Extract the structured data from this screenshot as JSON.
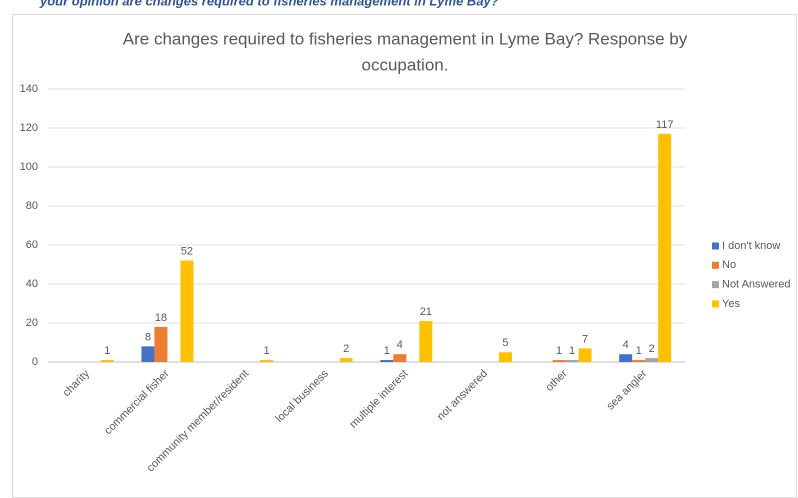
{
  "header": {
    "text": "your opinion are changes required to fisheries management in Lyme Bay?"
  },
  "chart_data": {
    "type": "bar",
    "title": [
      "Are changes required to fisheries management in Lyme Bay?  Response by",
      "occupation."
    ],
    "categories": [
      "charity",
      "commercial fisher",
      "community member/resident",
      "local business",
      "multiple interest",
      "not answered",
      "other",
      "sea angler"
    ],
    "series": [
      {
        "name": "I don't know",
        "color": "#4472c4",
        "values": [
          null,
          8,
          null,
          null,
          1,
          null,
          null,
          4
        ]
      },
      {
        "name": "No",
        "color": "#ed7d31",
        "values": [
          null,
          18,
          null,
          null,
          4,
          null,
          1,
          1
        ]
      },
      {
        "name": "Not Answered",
        "color": "#a5a5a5",
        "values": [
          null,
          null,
          null,
          null,
          null,
          null,
          1,
          2
        ]
      },
      {
        "name": "Yes",
        "color": "#ffc000",
        "values": [
          1,
          52,
          1,
          2,
          21,
          5,
          7,
          117
        ]
      }
    ],
    "ylim": [
      0,
      140
    ],
    "yticks": [
      0,
      20,
      40,
      60,
      80,
      100,
      120,
      140
    ],
    "grid": true,
    "legend": "right"
  }
}
